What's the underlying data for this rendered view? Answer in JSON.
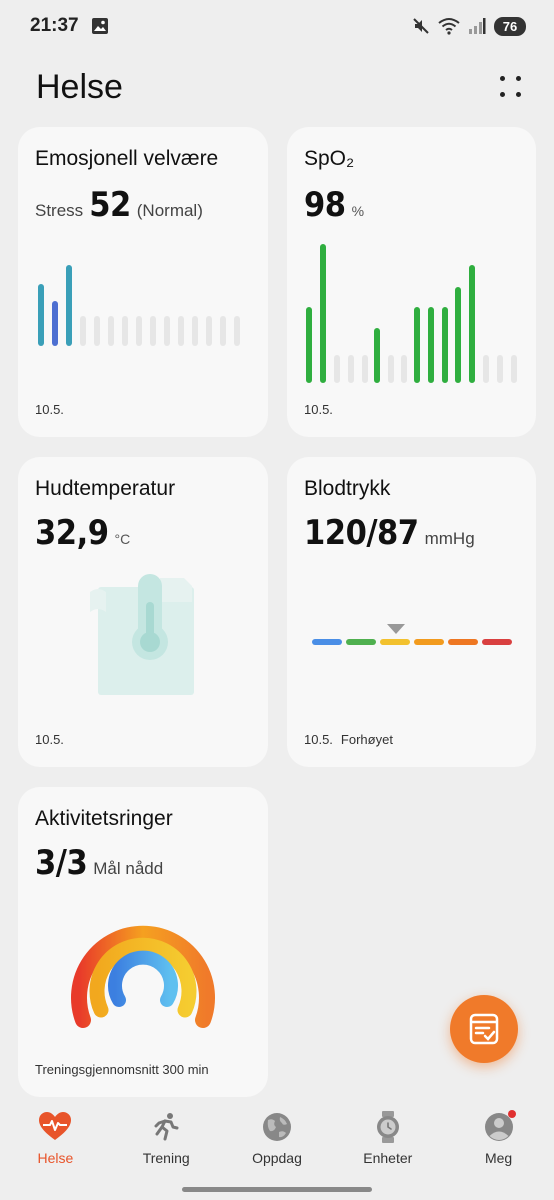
{
  "status": {
    "time": "21:37",
    "battery": "76"
  },
  "header": {
    "title": "Helse"
  },
  "cards": {
    "stress": {
      "title": "Emosjonell velvære",
      "label": "Stress",
      "value": "52",
      "status": "(Normal)",
      "date": "10.5.",
      "accent": "#3a9fb8"
    },
    "spo2": {
      "title": "SpO₂",
      "value": "98",
      "unit": "%",
      "date": "10.5.",
      "accent": "#2fae3f"
    },
    "skin_temp": {
      "title": "Hudtemperatur",
      "value": "32,9",
      "unit": "°C",
      "date": "10.5."
    },
    "blood_pressure": {
      "title": "Blodtrykk",
      "value": "120/87",
      "unit": "mmHg",
      "date": "10.5.",
      "status": "Forhøyet",
      "segments": [
        "#4a8ee6",
        "#4fb04f",
        "#f2c12e",
        "#f29b1e",
        "#ee7722",
        "#d94040"
      ]
    },
    "activity": {
      "title": "Aktivitetsringer",
      "value": "3/3",
      "status": "Mål nådd",
      "footer": "Treningsgjennomsnitt 300 min"
    }
  },
  "fab": {
    "icon": "report-icon"
  },
  "nav": [
    {
      "label": "Helse",
      "icon": "heart-icon",
      "active": true
    },
    {
      "label": "Trening",
      "icon": "runner-icon",
      "active": false
    },
    {
      "label": "Oppdag",
      "icon": "globe-icon",
      "active": false
    },
    {
      "label": "Enheter",
      "icon": "watch-icon",
      "active": false
    },
    {
      "label": "Meg",
      "icon": "profile-icon",
      "active": false
    }
  ]
}
